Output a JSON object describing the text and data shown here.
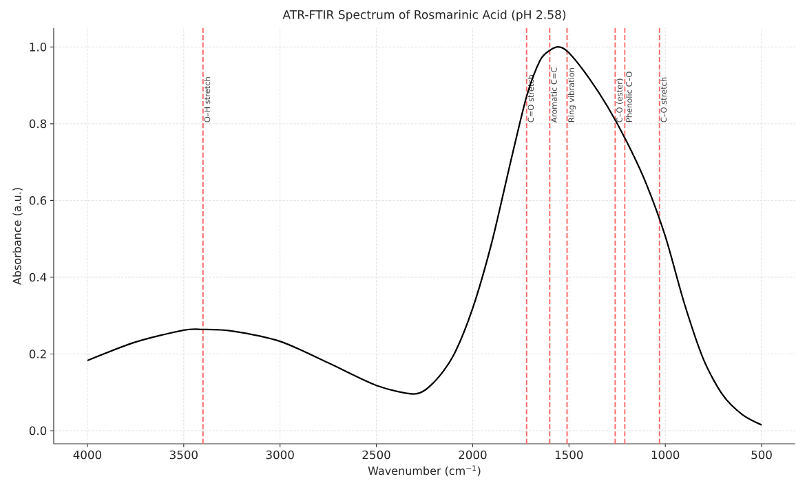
{
  "chart_data": {
    "type": "line",
    "title": "ATR-FTIR Spectrum of Rosmarinic Acid (pH 2.58)",
    "xlabel": "Wavenumber (cm$^{−1}$)",
    "ylabel": "Absorbance (a.u.)",
    "x": [
      4000,
      3750,
      3500,
      3400,
      3250,
      3000,
      2750,
      2500,
      2300,
      2200,
      2100,
      2000,
      1900,
      1800,
      1720,
      1650,
      1600,
      1550,
      1500,
      1400,
      1300,
      1200,
      1100,
      1000,
      900,
      800,
      700,
      600,
      500
    ],
    "series": [
      {
        "color": "#000000",
        "values": [
          0.183,
          0.231,
          0.262,
          0.264,
          0.26,
          0.233,
          0.177,
          0.118,
          0.096,
          0.127,
          0.196,
          0.319,
          0.492,
          0.707,
          0.871,
          0.965,
          0.991,
          1.0,
          0.985,
          0.922,
          0.845,
          0.753,
          0.645,
          0.507,
          0.33,
          0.184,
          0.092,
          0.042,
          0.015
        ]
      }
    ],
    "ref_lines": [
      {
        "axis": "x",
        "value": 3400,
        "label": "O–H stretch",
        "color": "#ff6b6b",
        "line_style": "dashed"
      },
      {
        "axis": "x",
        "value": 1720,
        "label": "C=O stretch",
        "color": "#ff6b6b",
        "line_style": "dashed"
      },
      {
        "axis": "x",
        "value": 1600,
        "label": "Aromatic C=C",
        "color": "#ff6b6b",
        "line_style": "dashed"
      },
      {
        "axis": "x",
        "value": 1510,
        "label": "Ring vibration",
        "color": "#ff6b6b",
        "line_style": "dashed"
      },
      {
        "axis": "x",
        "value": 1260,
        "label": "C–O (ester)",
        "color": "#ff6b6b",
        "line_style": "dashed"
      },
      {
        "axis": "x",
        "value": 1210,
        "label": "Phenolic C–O",
        "color": "#ff6b6b",
        "line_style": "dashed"
      },
      {
        "axis": "x",
        "value": 1030,
        "label": "C–O stretch",
        "color": "#ff6b6b",
        "line_style": "dashed"
      }
    ],
    "xlim": [
      4175,
      325
    ],
    "ylim": [
      -0.034,
      1.049
    ],
    "xticks": [
      4000,
      3500,
      3000,
      2500,
      2000,
      1500,
      1000,
      500
    ],
    "yticks": [
      {
        "value": 0,
        "label": "0.0"
      },
      {
        "value": 0.2,
        "label": "0.2"
      },
      {
        "value": 0.4,
        "label": "0.4"
      },
      {
        "value": 0.6,
        "label": "0.6"
      },
      {
        "value": 0.8,
        "label": "0.8"
      },
      {
        "value": 1.0,
        "label": "1.0"
      }
    ],
    "grid": true,
    "line_style": "solid"
  }
}
